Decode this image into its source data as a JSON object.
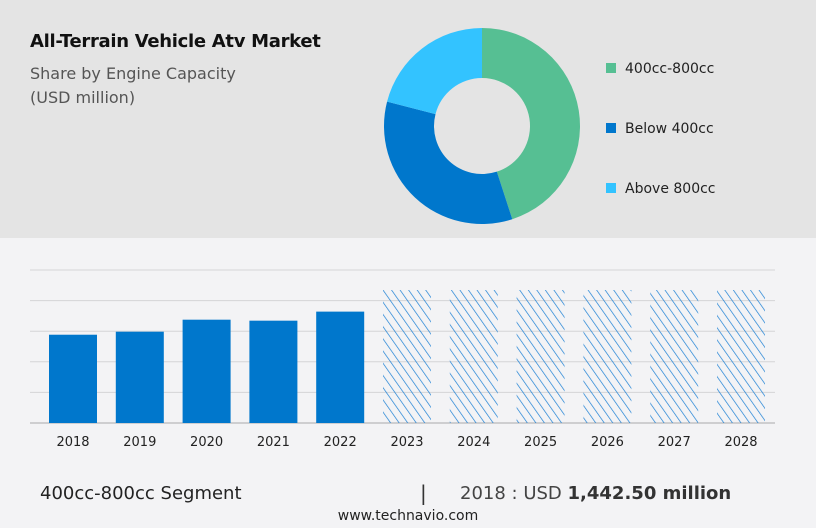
{
  "title": "All-Terrain Vehicle Atv Market",
  "subtitle_line1": "Share by Engine Capacity",
  "subtitle_line2": "(USD million)",
  "chart_data": [
    {
      "type": "pie",
      "donut": true,
      "slices": [
        {
          "label": "400cc-800cc",
          "share": 45,
          "color": "#56bf93"
        },
        {
          "label": "Below 400cc",
          "share": 34,
          "color": "#0077cc"
        },
        {
          "label": "Above 800cc",
          "share": 21,
          "color": "#33c3ff"
        }
      ],
      "legend_position": "right"
    },
    {
      "type": "bar",
      "categories": [
        "2018",
        "2019",
        "2020",
        "2021",
        "2022",
        "2023",
        "2024",
        "2025",
        "2026",
        "2027",
        "2028"
      ],
      "values": [
        1442.5,
        1492,
        1688,
        1672,
        1820,
        null,
        null,
        null,
        null,
        null,
        null
      ],
      "forecast": [
        false,
        false,
        false,
        false,
        false,
        true,
        true,
        true,
        true,
        true,
        true
      ],
      "color": "#0077cc",
      "grid": true,
      "ylim": [
        0,
        2500
      ]
    }
  ],
  "footer": {
    "segment": "400cc-800cc Segment",
    "separator": "|",
    "year_label": "2018 : USD",
    "value": "1,442.50 million"
  },
  "url": "www.technavio.com"
}
